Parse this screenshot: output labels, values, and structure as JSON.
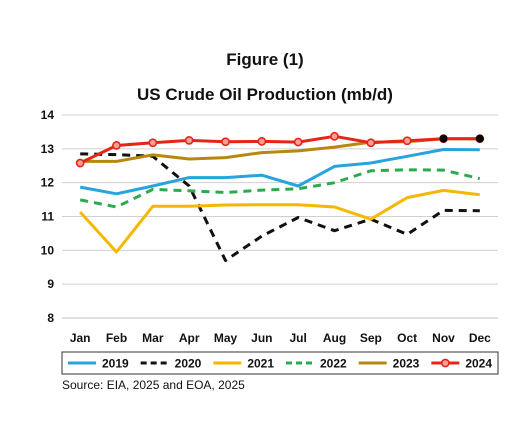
{
  "figure_label": "Figure (1)",
  "source": "Source: EIA, 2025 and EOA, 2025",
  "chart_data": {
    "type": "line",
    "title": "US Crude Oil Production (mb/d)",
    "xlabel": "",
    "ylabel": "",
    "categories": [
      "Jan",
      "Feb",
      "Mar",
      "Apr",
      "May",
      "Jun",
      "Jul",
      "Aug",
      "Sep",
      "Oct",
      "Nov",
      "Dec"
    ],
    "ylim": [
      8,
      14
    ],
    "yticks": [
      8,
      9,
      10,
      11,
      12,
      13,
      14
    ],
    "grid": "horizontal",
    "legend_position": "bottom",
    "series": [
      {
        "name": "2019",
        "color": "#29a3dc",
        "style": "solid",
        "markers": "none",
        "values": [
          11.87,
          11.67,
          11.9,
          12.15,
          12.15,
          12.22,
          11.9,
          12.48,
          12.58,
          12.78,
          12.98,
          12.97
        ]
      },
      {
        "name": "2020",
        "color": "#111111",
        "style": "dashed",
        "markers": "none",
        "values": [
          12.85,
          12.83,
          12.78,
          11.9,
          9.7,
          10.42,
          10.97,
          10.58,
          10.92,
          10.47,
          11.18,
          11.17
        ]
      },
      {
        "name": "2021",
        "color": "#f5b800",
        "style": "solid",
        "markers": "none",
        "values": [
          11.13,
          9.95,
          11.3,
          11.3,
          11.34,
          11.35,
          11.35,
          11.28,
          10.92,
          11.56,
          11.77,
          11.64
        ]
      },
      {
        "name": "2022",
        "color": "#2bab4c",
        "style": "dashed",
        "markers": "none",
        "values": [
          11.49,
          11.28,
          11.8,
          11.76,
          11.71,
          11.78,
          11.82,
          12.0,
          12.35,
          12.38,
          12.37,
          12.12
        ]
      },
      {
        "name": "2023",
        "color": "#b8870d",
        "style": "solid",
        "markers": "none",
        "values": [
          12.63,
          12.63,
          12.82,
          12.7,
          12.74,
          12.89,
          12.94,
          13.05,
          13.2,
          13.21,
          13.3,
          13.3
        ]
      },
      {
        "name": "2024",
        "color": "#e62417",
        "style": "solid",
        "markers": "circle",
        "values": [
          12.58,
          13.1,
          13.18,
          13.25,
          13.21,
          13.22,
          13.2,
          13.37,
          13.18,
          13.24,
          13.3,
          13.3
        ]
      }
    ],
    "black_points": [
      {
        "x": "Nov",
        "y": 13.3
      },
      {
        "x": "Dec",
        "y": 13.3
      }
    ]
  }
}
